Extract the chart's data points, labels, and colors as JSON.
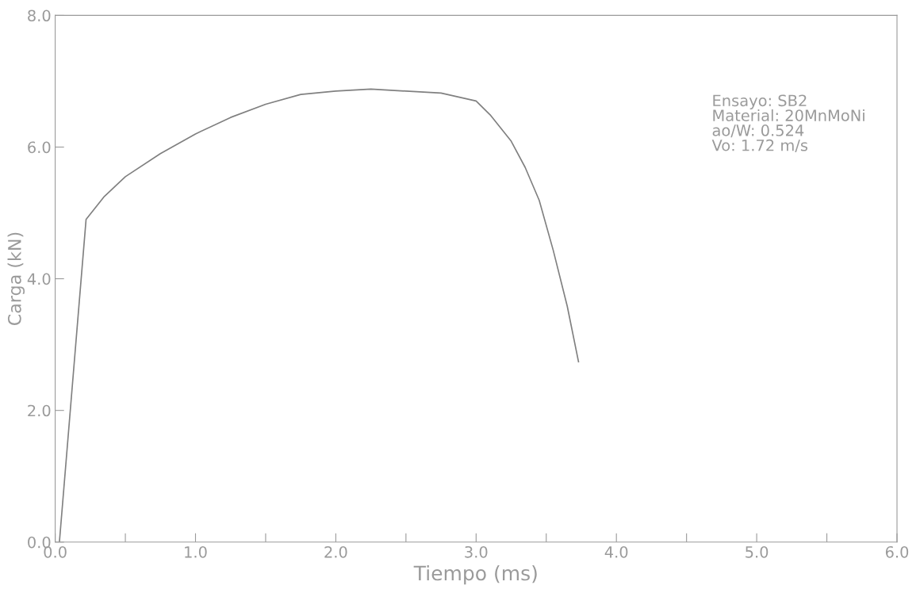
{
  "chart_data": {
    "type": "line",
    "xlabel": "Tiempo (ms)",
    "ylabel": "Carga (kN)",
    "xlim": [
      0,
      6
    ],
    "ylim": [
      0,
      8
    ],
    "xticks": [
      {
        "value": 0,
        "label": "0.0"
      },
      {
        "value": 0.5,
        "label": null
      },
      {
        "value": 1,
        "label": "1.0"
      },
      {
        "value": 1.5,
        "label": null
      },
      {
        "value": 2,
        "label": "2.0"
      },
      {
        "value": 2.5,
        "label": null
      },
      {
        "value": 3,
        "label": "3.0"
      },
      {
        "value": 3.5,
        "label": null
      },
      {
        "value": 4,
        "label": "4.0"
      },
      {
        "value": 4.5,
        "label": null
      },
      {
        "value": 5,
        "label": "5.0"
      },
      {
        "value": 5.5,
        "label": null
      },
      {
        "value": 6,
        "label": "6.0"
      }
    ],
    "yticks": [
      {
        "value": 0,
        "label": "0.0"
      },
      {
        "value": 2,
        "label": "2.0"
      },
      {
        "value": 4,
        "label": "4.0"
      },
      {
        "value": 6,
        "label": "6.0"
      },
      {
        "value": 8,
        "label": "8.0"
      }
    ],
    "grid": false,
    "marker": "none",
    "line_style": "solid",
    "annotations": [
      "Ensayo: SB2\nMaterial: 20MnMoNi\nao/W: 0.524\nVo: 1.72 m/s"
    ],
    "x": [
      0.03,
      0.22,
      0.35,
      0.5,
      0.75,
      1.0,
      1.25,
      1.5,
      1.75,
      2.0,
      2.25,
      2.5,
      2.75,
      3.0,
      3.1,
      3.25,
      3.35,
      3.45,
      3.55,
      3.65,
      3.73
    ],
    "series": [
      {
        "color": "#808080",
        "values": [
          0,
          4.9,
          5.25,
          5.55,
          5.9,
          6.2,
          6.45,
          6.65,
          6.8,
          6.85,
          6.88,
          6.85,
          6.82,
          6.7,
          6.49,
          6.09,
          5.69,
          5.19,
          4.43,
          3.58,
          2.74
        ]
      }
    ]
  }
}
